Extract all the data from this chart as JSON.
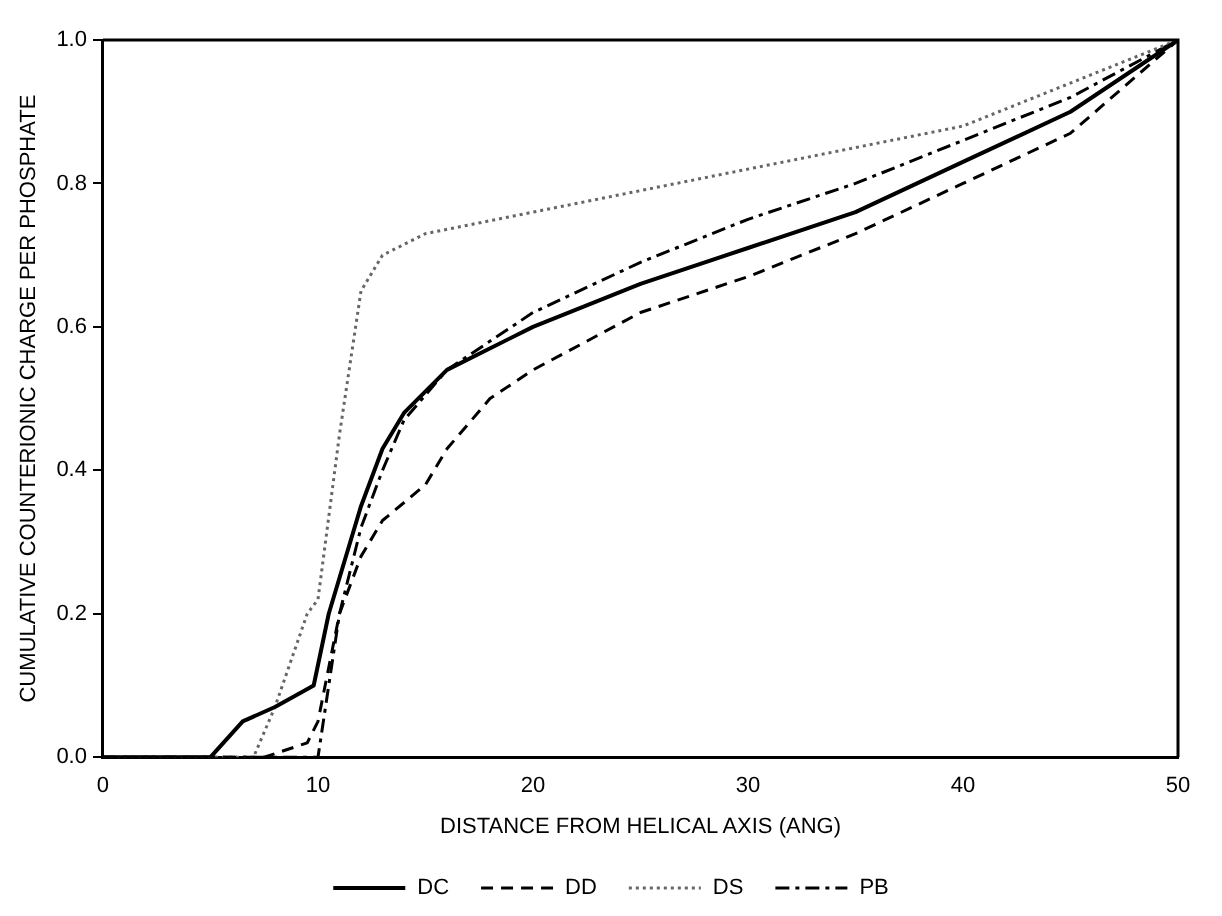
{
  "chart_data": {
    "type": "line",
    "xlabel": "DISTANCE FROM HELICAL AXIS (ANG)",
    "ylabel": "CUMULATIVE COUNTERIONIC CHARGE PER PHOSPHATE",
    "xlim": [
      0,
      50
    ],
    "xticks": [
      0,
      10,
      20,
      30,
      40,
      50
    ],
    "ylim": [
      0,
      1.0
    ],
    "yticks": [
      {
        "value": 0,
        "label": "0.0"
      },
      0.2,
      0.4,
      0.6,
      0.8,
      {
        "value": 1,
        "label": "1.0"
      }
    ],
    "grid": false,
    "legend": "bottom",
    "marker": "none",
    "series": [
      {
        "name": "DC",
        "color": "#000000",
        "line_style": "solid",
        "x": [
          0,
          5,
          6.5,
          8,
          9.8,
          10.5,
          12,
          13,
          14,
          16,
          20,
          25,
          30,
          35,
          40,
          45,
          50
        ],
        "values": [
          0,
          0,
          0.05,
          0.07,
          0.1,
          0.2,
          0.35,
          0.43,
          0.48,
          0.54,
          0.6,
          0.66,
          0.71,
          0.76,
          0.83,
          0.9,
          1.0
        ]
      },
      {
        "name": "DD",
        "color": "#000000",
        "line_style": "dashed",
        "x": [
          0,
          7.5,
          9.5,
          10,
          11,
          12,
          13,
          15,
          16,
          18,
          20,
          25,
          30,
          35,
          40,
          45,
          50
        ],
        "values": [
          0,
          0,
          0.02,
          0.05,
          0.2,
          0.28,
          0.33,
          0.38,
          0.43,
          0.5,
          0.54,
          0.62,
          0.67,
          0.73,
          0.8,
          0.87,
          1.0
        ]
      },
      {
        "name": "DS",
        "color": "#666666",
        "line_style": "dotted",
        "x": [
          0,
          7,
          8,
          9.5,
          10,
          11,
          12,
          13,
          15,
          20,
          25,
          30,
          40,
          50
        ],
        "values": [
          0,
          0,
          0.07,
          0.2,
          0.22,
          0.45,
          0.65,
          0.7,
          0.73,
          0.76,
          0.79,
          0.82,
          0.88,
          1.0
        ]
      },
      {
        "name": "PB",
        "color": "#000000",
        "line_style": "dashdot",
        "x": [
          0,
          10,
          10.5,
          11,
          12,
          13,
          14,
          16,
          20,
          25,
          30,
          35,
          40,
          45,
          50
        ],
        "values": [
          0,
          0,
          0.1,
          0.2,
          0.32,
          0.4,
          0.47,
          0.54,
          0.62,
          0.69,
          0.75,
          0.8,
          0.86,
          0.92,
          1.0
        ]
      }
    ]
  }
}
